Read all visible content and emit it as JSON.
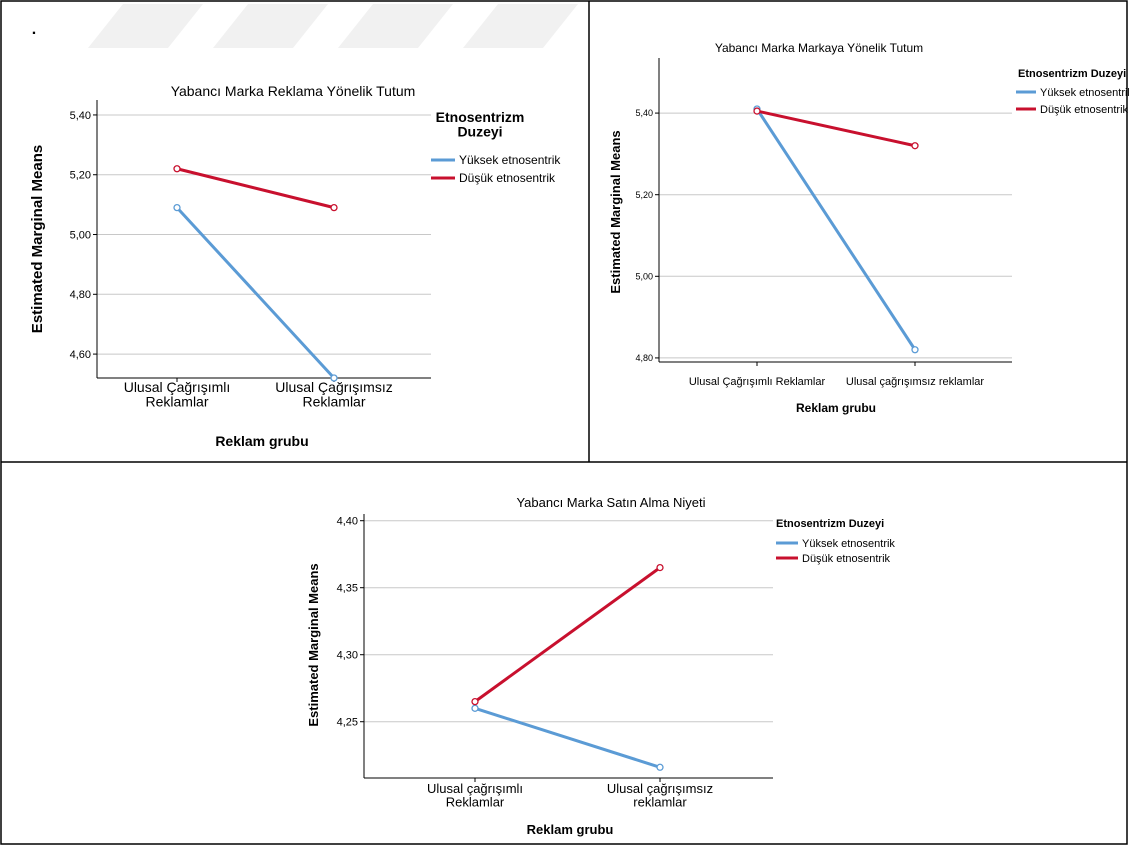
{
  "page": {
    "bullet": "."
  },
  "colors": {
    "series_high": "#5b9bd5",
    "series_low": "#c8102e",
    "grid": "#c8c8c8"
  },
  "chart_data": [
    {
      "type": "line",
      "title": "Yabancı Marka Reklama Yönelik Tutum",
      "xlabel": "Reklam grubu",
      "ylabel": "Estimated Marginal Means",
      "categories": [
        "Ulusal Çağrışımlı\nReklamlar",
        "Ulusal Çağrışımsız\nReklamlar"
      ],
      "yticks": [
        "4,60",
        "4,80",
        "5,00",
        "5,20",
        "5,40"
      ],
      "ylim": [
        4.52,
        5.45
      ],
      "grid": true,
      "legend": {
        "title": "Etnosentrizm\nDuzeyi",
        "placement": "right"
      },
      "series": [
        {
          "name": "Yüksek etnosentrik",
          "color": "#5b9bd5",
          "values": [
            5.09,
            4.52
          ]
        },
        {
          "name": "Düşük etnosentrik",
          "color": "#c8102e",
          "values": [
            5.22,
            5.09
          ]
        }
      ]
    },
    {
      "type": "line",
      "title": "Yabancı Marka Markaya Yönelik Tutum",
      "xlabel": "Reklam grubu",
      "ylabel": "Estimated Marginal Means",
      "categories": [
        "Ulusal Çağrışımlı Reklamlar",
        "Ulusal çağrışımsız reklamlar"
      ],
      "yticks": [
        "4,80",
        "5,00",
        "5,20",
        "5,40"
      ],
      "ylim": [
        4.79,
        5.535
      ],
      "grid": true,
      "legend": {
        "title": "Etnosentrizm Duzeyi",
        "placement": "right"
      },
      "series": [
        {
          "name": "Yüksek etnosentrik",
          "color": "#5b9bd5",
          "values": [
            5.41,
            4.82
          ]
        },
        {
          "name": "Düşük etnosentrik",
          "color": "#c8102e",
          "values": [
            5.405,
            5.32
          ]
        }
      ]
    },
    {
      "type": "line",
      "title": "Yabancı Marka Satın Alma Niyeti",
      "xlabel": "Reklam grubu",
      "ylabel": "Estimated Marginal Means",
      "categories": [
        "Ulusal çağrışımlı\nReklamlar",
        "Ulusal çağrışımsız\nreklamlar"
      ],
      "yticks": [
        "4,25",
        "4,30",
        "4,35",
        "4,40"
      ],
      "ylim": [
        4.208,
        4.405
      ],
      "grid": true,
      "legend": {
        "title": "Etnosentrizm Duzeyi",
        "placement": "right"
      },
      "series": [
        {
          "name": "Yüksek etnosentrik",
          "color": "#5b9bd5",
          "values": [
            4.26,
            4.216
          ]
        },
        {
          "name": "Düşük etnosentrik",
          "color": "#c8102e",
          "values": [
            4.265,
            4.365
          ]
        }
      ]
    }
  ]
}
